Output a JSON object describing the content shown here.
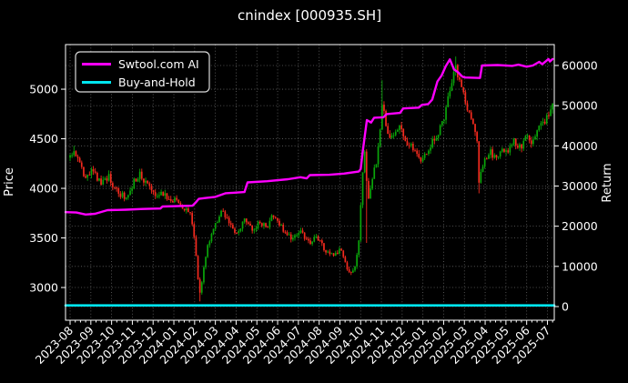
{
  "title": "cnindex [000935.SH]",
  "legend": {
    "items": [
      {
        "label": "Swtool.com AI",
        "color": "#ff00ff"
      },
      {
        "label": "Buy-and-Hold",
        "color": "#00e5ee"
      }
    ]
  },
  "axes": {
    "left_label": "Price",
    "right_label": "Return",
    "price_ticks": [
      3000,
      3500,
      4000,
      4500,
      5000
    ],
    "return_ticks": [
      0,
      10000,
      20000,
      30000,
      40000,
      50000,
      60000
    ],
    "x_ticks": [
      "2023-08",
      "2023-09",
      "2023-10",
      "2023-11",
      "2023-12",
      "2024-01",
      "2024-02",
      "2024-03",
      "2024-04",
      "2024-05",
      "2024-06",
      "2024-07",
      "2024-08",
      "2024-09",
      "2024-10",
      "2024-11",
      "2024-12",
      "2025-01",
      "2025-02",
      "2025-03",
      "2025-04",
      "2025-05",
      "2025-06",
      "2025-07"
    ],
    "price_range": [
      2670,
      5450
    ],
    "return_range": [
      -3400,
      65200
    ],
    "x_range": [
      -0.22,
      23.33
    ]
  },
  "colors": {
    "background": "#000000",
    "text": "#ffffff",
    "grid": "#888888",
    "border": "#ffffff",
    "candle_up": "#0aa50a",
    "candle_down": "#f42a1e",
    "ai_line": "#ff00ff",
    "buy_hold_line": "#00e5ee"
  },
  "chart_data": {
    "type": "candlestick+line",
    "title": "cnindex [000935.SH]",
    "x_unit": "months since 2023-08 (tick n = month start)",
    "grid": "dotted, both price and return gridlines",
    "legend_position": "upper-left",
    "candles": {
      "name": "cnindex OHLC (price, left axis)",
      "count": 250,
      "t_start": 0,
      "t_end": 23.25,
      "noise_pct": 0.016,
      "wick_pct": 0.009,
      "close_path": [
        [
          0.0,
          4310
        ],
        [
          0.15,
          4400
        ],
        [
          0.45,
          4240
        ],
        [
          0.75,
          4090
        ],
        [
          1.1,
          4180
        ],
        [
          1.45,
          4050
        ],
        [
          1.85,
          4120
        ],
        [
          2.3,
          3950
        ],
        [
          2.75,
          3900
        ],
        [
          3.1,
          4080
        ],
        [
          3.35,
          4140
        ],
        [
          3.8,
          4000
        ],
        [
          4.2,
          3910
        ],
        [
          4.5,
          3960
        ],
        [
          4.85,
          3850
        ],
        [
          5.05,
          3910
        ],
        [
          5.4,
          3820
        ],
        [
          5.8,
          3720
        ],
        [
          6.0,
          3480
        ],
        [
          6.15,
          3100
        ],
        [
          6.28,
          2900
        ],
        [
          6.45,
          3240
        ],
        [
          6.65,
          3420
        ],
        [
          6.9,
          3600
        ],
        [
          7.35,
          3780
        ],
        [
          7.7,
          3620
        ],
        [
          8.1,
          3550
        ],
        [
          8.45,
          3700
        ],
        [
          8.8,
          3580
        ],
        [
          9.15,
          3660
        ],
        [
          9.5,
          3610
        ],
        [
          9.8,
          3740
        ],
        [
          10.2,
          3600
        ],
        [
          10.7,
          3480
        ],
        [
          11.1,
          3560
        ],
        [
          11.5,
          3450
        ],
        [
          11.9,
          3520
        ],
        [
          12.3,
          3370
        ],
        [
          12.7,
          3320
        ],
        [
          13.0,
          3390
        ],
        [
          13.35,
          3190
        ],
        [
          13.6,
          3120
        ],
        [
          13.8,
          3300
        ],
        [
          13.95,
          3560
        ],
        [
          14.08,
          4150
        ],
        [
          14.2,
          4420
        ],
        [
          14.35,
          3850
        ],
        [
          14.55,
          4080
        ],
        [
          14.8,
          4300
        ],
        [
          15.0,
          4750
        ],
        [
          15.08,
          4950
        ],
        [
          15.2,
          4600
        ],
        [
          15.5,
          4520
        ],
        [
          15.85,
          4650
        ],
        [
          16.2,
          4480
        ],
        [
          16.6,
          4380
        ],
        [
          16.95,
          4280
        ],
        [
          17.3,
          4420
        ],
        [
          17.7,
          4550
        ],
        [
          18.0,
          4700
        ],
        [
          18.3,
          5000
        ],
        [
          18.55,
          5230
        ],
        [
          18.8,
          5050
        ],
        [
          19.1,
          4850
        ],
        [
          19.4,
          4650
        ],
        [
          19.6,
          4480
        ],
        [
          19.7,
          4050
        ],
        [
          19.9,
          4250
        ],
        [
          20.2,
          4380
        ],
        [
          20.5,
          4300
        ],
        [
          20.8,
          4420
        ],
        [
          21.1,
          4350
        ],
        [
          21.4,
          4480
        ],
        [
          21.7,
          4400
        ],
        [
          22.0,
          4520
        ],
        [
          22.3,
          4460
        ],
        [
          22.6,
          4600
        ],
        [
          22.9,
          4680
        ],
        [
          23.1,
          4780
        ],
        [
          23.25,
          4870
        ]
      ],
      "spikes": [
        {
          "t": 0.15,
          "high": 4430
        },
        {
          "t": 6.28,
          "low": 2860
        },
        {
          "t": 14.3,
          "low": 3450
        },
        {
          "t": 15.06,
          "high": 5090
        },
        {
          "t": 18.55,
          "high": 5330
        },
        {
          "t": 19.7,
          "low": 3950
        }
      ]
    },
    "series": [
      {
        "name": "Swtool.com AI",
        "axis": "return",
        "color": "#ff00ff",
        "width": 2.4,
        "points": [
          [
            -0.22,
            23500
          ],
          [
            0.3,
            23400
          ],
          [
            0.75,
            22900
          ],
          [
            1.2,
            23100
          ],
          [
            1.8,
            24000
          ],
          [
            2.7,
            24100
          ],
          [
            3.5,
            24300
          ],
          [
            4.35,
            24400
          ],
          [
            4.45,
            24900
          ],
          [
            5.9,
            25100
          ],
          [
            6.05,
            25900
          ],
          [
            6.2,
            26800
          ],
          [
            6.5,
            27000
          ],
          [
            7.0,
            27300
          ],
          [
            7.5,
            28200
          ],
          [
            8.4,
            28500
          ],
          [
            8.55,
            30900
          ],
          [
            9.5,
            31200
          ],
          [
            10.5,
            31700
          ],
          [
            11.1,
            32200
          ],
          [
            11.4,
            31900
          ],
          [
            11.55,
            32700
          ],
          [
            12.5,
            32800
          ],
          [
            13.2,
            33100
          ],
          [
            13.9,
            33600
          ],
          [
            14.0,
            34200
          ],
          [
            14.1,
            38500
          ],
          [
            14.3,
            46400
          ],
          [
            14.5,
            45800
          ],
          [
            14.65,
            47000
          ],
          [
            15.1,
            47100
          ],
          [
            15.25,
            47900
          ],
          [
            15.9,
            48200
          ],
          [
            16.05,
            49300
          ],
          [
            16.8,
            49500
          ],
          [
            16.95,
            50200
          ],
          [
            17.25,
            50400
          ],
          [
            17.45,
            51500
          ],
          [
            17.7,
            56000
          ],
          [
            17.9,
            57500
          ],
          [
            18.1,
            59800
          ],
          [
            18.3,
            61500
          ],
          [
            18.5,
            59000
          ],
          [
            18.7,
            58300
          ],
          [
            18.9,
            57200
          ],
          [
            19.05,
            57000
          ],
          [
            19.75,
            56900
          ],
          [
            19.85,
            60000
          ],
          [
            20.6,
            60100
          ],
          [
            21.3,
            59900
          ],
          [
            21.6,
            60200
          ],
          [
            22.0,
            59700
          ],
          [
            22.3,
            60000
          ],
          [
            22.6,
            60900
          ],
          [
            22.75,
            60300
          ],
          [
            23.05,
            61600
          ],
          [
            23.12,
            61000
          ],
          [
            23.25,
            61600
          ]
        ]
      },
      {
        "name": "Buy-and-Hold",
        "axis": "return",
        "color": "#00e5ee",
        "width": 2.6,
        "points": [
          [
            -0.22,
            300
          ],
          [
            23.33,
            300
          ]
        ]
      }
    ]
  }
}
